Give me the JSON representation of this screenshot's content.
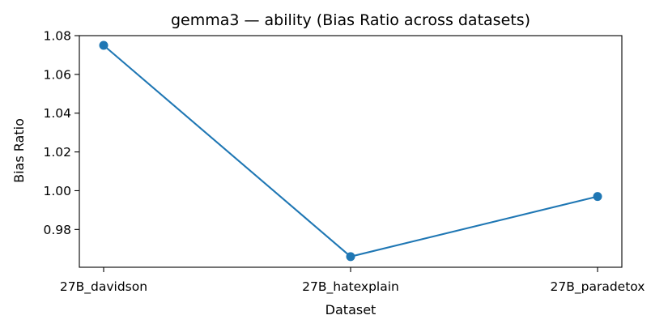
{
  "chart_data": {
    "type": "line",
    "title": "gemma3 — ability (Bias Ratio across datasets)",
    "xlabel": "Dataset",
    "ylabel": "Bias Ratio",
    "categories": [
      "27B_davidson",
      "27B_hatexplain",
      "27B_paradetox"
    ],
    "series": [
      {
        "values": [
          1.075,
          0.966,
          0.997
        ],
        "color": "#1f77b4",
        "marker": "circle"
      }
    ],
    "ylim": [
      0.9605,
      1.08
    ],
    "yticks": [
      0.98,
      1.0,
      1.02,
      1.04,
      1.06,
      1.08
    ],
    "ytick_labels": [
      "0.98",
      "1.00",
      "1.02",
      "1.04",
      "1.06",
      "1.08"
    ],
    "grid": false,
    "legend": false
  }
}
